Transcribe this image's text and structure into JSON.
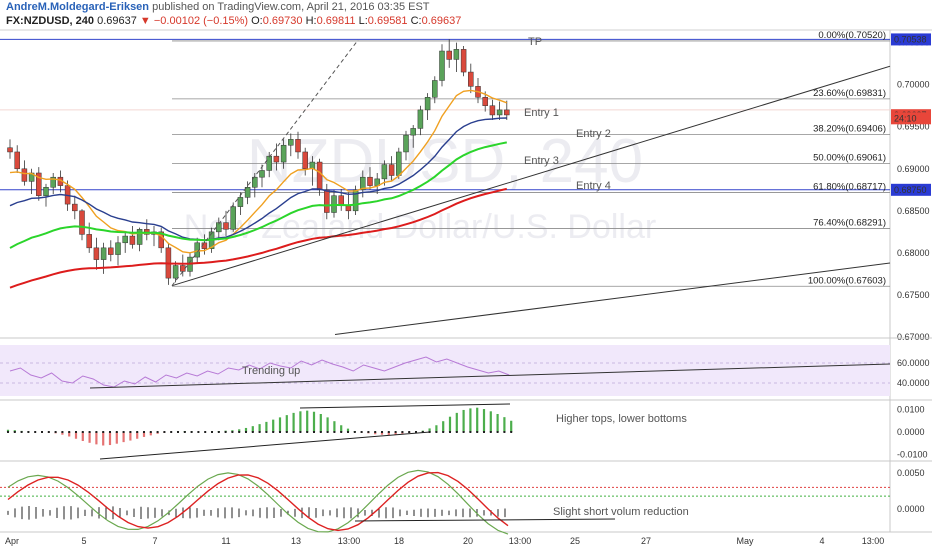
{
  "header": {
    "author": "AndreM.Moldegard-Eriksen",
    "published": "published on TradingView.com, April 21, 2016 03:35 EST",
    "symbol": "FX:NZDUSD, 240",
    "last": "0.69637",
    "arrow": "▼",
    "change": "−0.00102 (−0.15%)",
    "open_label": "O:",
    "open": "0.69730",
    "high_label": "H:",
    "high": "0.69811",
    "low_label": "L:",
    "low": "0.69581",
    "close_label": "C:",
    "close": "0.69637"
  },
  "watermark": {
    "symbol": "NZDUSD, 240",
    "name": "New Zealand Dollar/U.S. Dollar"
  },
  "price_axis": {
    "ticks": [
      "0.70500",
      "0.70000",
      "0.69500",
      "0.69000",
      "0.68500",
      "0.68000",
      "0.67500",
      "0.67000"
    ],
    "ylim": [
      0.67,
      0.7065
    ],
    "badges": [
      {
        "value": 0.70538,
        "label": "0.70538",
        "color": "#2a3bd4"
      },
      {
        "value": 0.69637,
        "label": "0.69637",
        "color": "#e8463a"
      },
      {
        "value": 0.696,
        "label": "24:10",
        "color": "#e8463a"
      },
      {
        "value": 0.6875,
        "label": "0.68750",
        "color": "#2a3bd4"
      }
    ]
  },
  "time_axis": {
    "labels": [
      "Apr",
      "5",
      "7",
      "11",
      "13",
      "13:00",
      "18",
      "20",
      "13:00",
      "25",
      "27",
      "May",
      "4",
      "13:00"
    ]
  },
  "fib_levels": [
    {
      "label": "0.00%(0.70520)",
      "value": 0.7052
    },
    {
      "label": "23.60%(0.69831)",
      "value": 0.69831
    },
    {
      "label": "38.20%(0.69406)",
      "value": 0.69406
    },
    {
      "label": "50.00%(0.69061)",
      "value": 0.69061
    },
    {
      "label": "61.80%(0.68717)",
      "value": 0.68717
    },
    {
      "label": "76.40%(0.68291)",
      "value": 0.68291
    },
    {
      "label": "100.00%(0.67603)",
      "value": 0.67603
    }
  ],
  "annotations": {
    "tp": "TP",
    "entries": [
      "Entry 1",
      "Entry 2",
      "Entry 3",
      "Entry 4"
    ],
    "rsi_note": "Trending up",
    "osc_note": "Higher tops, lower bottoms",
    "vol_note": "Slight short volum reduction"
  },
  "rsi_axis": {
    "ticks": [
      "60.0000",
      "40.0000"
    ]
  },
  "osc_axis": {
    "ticks": [
      "0.0100",
      "0.0000",
      "-0.0100"
    ]
  },
  "macd_axis": {
    "ticks": [
      "0.0050",
      "0.0000"
    ]
  },
  "colors": {
    "up": "#5aa35a",
    "down": "#d9493c",
    "ma_orange": "#f0a020",
    "ma_navy": "#2a3f8f",
    "ma_green": "#2bd52b",
    "ma_red": "#dd1c1c",
    "hline_blue": "#3344cc",
    "rsi_bg": "#f1e8fb"
  },
  "chart_data": {
    "type": "candlestick",
    "candles": [
      [
        0.6925,
        0.6935,
        0.6912,
        0.692
      ],
      [
        0.692,
        0.6928,
        0.6895,
        0.69
      ],
      [
        0.69,
        0.691,
        0.688,
        0.6885
      ],
      [
        0.6885,
        0.69,
        0.687,
        0.6895
      ],
      [
        0.6895,
        0.6902,
        0.6862,
        0.6868
      ],
      [
        0.6868,
        0.6882,
        0.6855,
        0.6878
      ],
      [
        0.6878,
        0.6895,
        0.687,
        0.689
      ],
      [
        0.689,
        0.6898,
        0.6872,
        0.688
      ],
      [
        0.688,
        0.6886,
        0.685,
        0.6858
      ],
      [
        0.6858,
        0.6868,
        0.684,
        0.685
      ],
      [
        0.685,
        0.6852,
        0.6815,
        0.6822
      ],
      [
        0.6822,
        0.6836,
        0.68,
        0.6806
      ],
      [
        0.6806,
        0.6818,
        0.678,
        0.6792
      ],
      [
        0.6792,
        0.6812,
        0.6775,
        0.6806
      ],
      [
        0.6806,
        0.6815,
        0.679,
        0.6798
      ],
      [
        0.6798,
        0.682,
        0.6785,
        0.6812
      ],
      [
        0.6812,
        0.6825,
        0.68,
        0.682
      ],
      [
        0.682,
        0.6832,
        0.6805,
        0.681
      ],
      [
        0.681,
        0.683,
        0.6802,
        0.6828
      ],
      [
        0.6828,
        0.684,
        0.6815,
        0.6822
      ],
      [
        0.6822,
        0.6832,
        0.6808,
        0.6825
      ],
      [
        0.6825,
        0.683,
        0.68,
        0.6806
      ],
      [
        0.6806,
        0.6812,
        0.6762,
        0.677
      ],
      [
        0.677,
        0.679,
        0.6765,
        0.6785
      ],
      [
        0.6785,
        0.6798,
        0.6772,
        0.6778
      ],
      [
        0.6778,
        0.68,
        0.6772,
        0.6795
      ],
      [
        0.6795,
        0.6818,
        0.6788,
        0.6812
      ],
      [
        0.6812,
        0.6822,
        0.6798,
        0.6805
      ],
      [
        0.6805,
        0.683,
        0.68,
        0.6825
      ],
      [
        0.6825,
        0.6842,
        0.6815,
        0.6836
      ],
      [
        0.6836,
        0.685,
        0.682,
        0.6828
      ],
      [
        0.6828,
        0.686,
        0.6825,
        0.6855
      ],
      [
        0.6855,
        0.6872,
        0.6845,
        0.6866
      ],
      [
        0.6866,
        0.6885,
        0.6858,
        0.6878
      ],
      [
        0.6878,
        0.6895,
        0.6866,
        0.689
      ],
      [
        0.689,
        0.6905,
        0.6878,
        0.6898
      ],
      [
        0.6898,
        0.692,
        0.689,
        0.6915
      ],
      [
        0.6915,
        0.693,
        0.6898,
        0.6908
      ],
      [
        0.6908,
        0.6935,
        0.69,
        0.6928
      ],
      [
        0.6928,
        0.6942,
        0.6915,
        0.6935
      ],
      [
        0.6935,
        0.6944,
        0.6912,
        0.692
      ],
      [
        0.692,
        0.6925,
        0.6892,
        0.69
      ],
      [
        0.69,
        0.6915,
        0.688,
        0.6908
      ],
      [
        0.6908,
        0.6912,
        0.6868,
        0.6875
      ],
      [
        0.6875,
        0.6882,
        0.684,
        0.6848
      ],
      [
        0.6848,
        0.6875,
        0.6842,
        0.6868
      ],
      [
        0.6868,
        0.6876,
        0.685,
        0.6856
      ],
      [
        0.6856,
        0.6872,
        0.684,
        0.685
      ],
      [
        0.685,
        0.688,
        0.6845,
        0.6875
      ],
      [
        0.6875,
        0.6898,
        0.6866,
        0.689
      ],
      [
        0.689,
        0.6902,
        0.6875,
        0.688
      ],
      [
        0.688,
        0.6895,
        0.687,
        0.6888
      ],
      [
        0.6888,
        0.691,
        0.688,
        0.6905
      ],
      [
        0.6905,
        0.6915,
        0.6885,
        0.6892
      ],
      [
        0.6892,
        0.6925,
        0.6888,
        0.692
      ],
      [
        0.692,
        0.6945,
        0.691,
        0.694
      ],
      [
        0.694,
        0.6952,
        0.6925,
        0.6948
      ],
      [
        0.6948,
        0.6975,
        0.694,
        0.697
      ],
      [
        0.697,
        0.699,
        0.6958,
        0.6985
      ],
      [
        0.6985,
        0.701,
        0.6978,
        0.7005
      ],
      [
        0.7005,
        0.7048,
        0.6998,
        0.704
      ],
      [
        0.704,
        0.7054,
        0.702,
        0.703
      ],
      [
        0.703,
        0.705,
        0.7015,
        0.7042
      ],
      [
        0.7042,
        0.7046,
        0.701,
        0.7015
      ],
      [
        0.7015,
        0.7025,
        0.699,
        0.6998
      ],
      [
        0.6998,
        0.7008,
        0.6978,
        0.6985
      ],
      [
        0.6985,
        0.6992,
        0.6968,
        0.6975
      ],
      [
        0.6975,
        0.6982,
        0.6958,
        0.6964
      ],
      [
        0.6964,
        0.698,
        0.6958,
        0.697
      ],
      [
        0.697,
        0.6981,
        0.6958,
        0.6964
      ]
    ],
    "price_lines": [
      0.70538,
      0.6875
    ],
    "rsi": {
      "ylim": [
        25,
        80
      ],
      "values": [
        52,
        55,
        48,
        45,
        50,
        42,
        40,
        47,
        44,
        38,
        36,
        42,
        39,
        46,
        41,
        48,
        45,
        50,
        47,
        52,
        49,
        55,
        53,
        58,
        54,
        60,
        57,
        55,
        62,
        58,
        63,
        59,
        56,
        52,
        58,
        55,
        52,
        56,
        60,
        63,
        66,
        61,
        64,
        60,
        56,
        53,
        50,
        52,
        48
      ]
    },
    "osc": {
      "ylim": [
        -0.012,
        0.012
      ],
      "values": [
        0.001,
        0.0008,
        0.0005,
        0.0002,
        0.0,
        0.0,
        -0.0002,
        -0.0006,
        -0.0012,
        -0.002,
        -0.003,
        -0.004,
        -0.0048,
        -0.0055,
        -0.006,
        -0.0058,
        -0.0052,
        -0.0045,
        -0.0038,
        -0.003,
        -0.0022,
        -0.0015,
        -0.0008,
        -0.0003,
        0.0,
        0.0002,
        0.0004,
        0.0002,
        0.0,
        0.0,
        0.0002,
        0.0004,
        0.0006,
        0.0008,
        0.0012,
        0.0018,
        0.0026,
        0.0035,
        0.0045,
        0.0055,
        0.0065,
        0.0075,
        0.0085,
        0.0092,
        0.0095,
        0.009,
        0.008,
        0.0065,
        0.0048,
        0.003,
        0.0015,
        0.0004,
        -0.0002,
        -0.0006,
        -0.001,
        -0.0012,
        -0.0013,
        -0.0012,
        -0.0008,
        -0.0004,
        0.0,
        0.0006,
        0.0016,
        0.003,
        0.0048,
        0.0068,
        0.0085,
        0.0098,
        0.0105,
        0.0108,
        0.0102,
        0.0092,
        0.008,
        0.0066,
        0.005
      ]
    },
    "macd": {
      "ylim": [
        -0.003,
        0.0065
      ]
    }
  }
}
